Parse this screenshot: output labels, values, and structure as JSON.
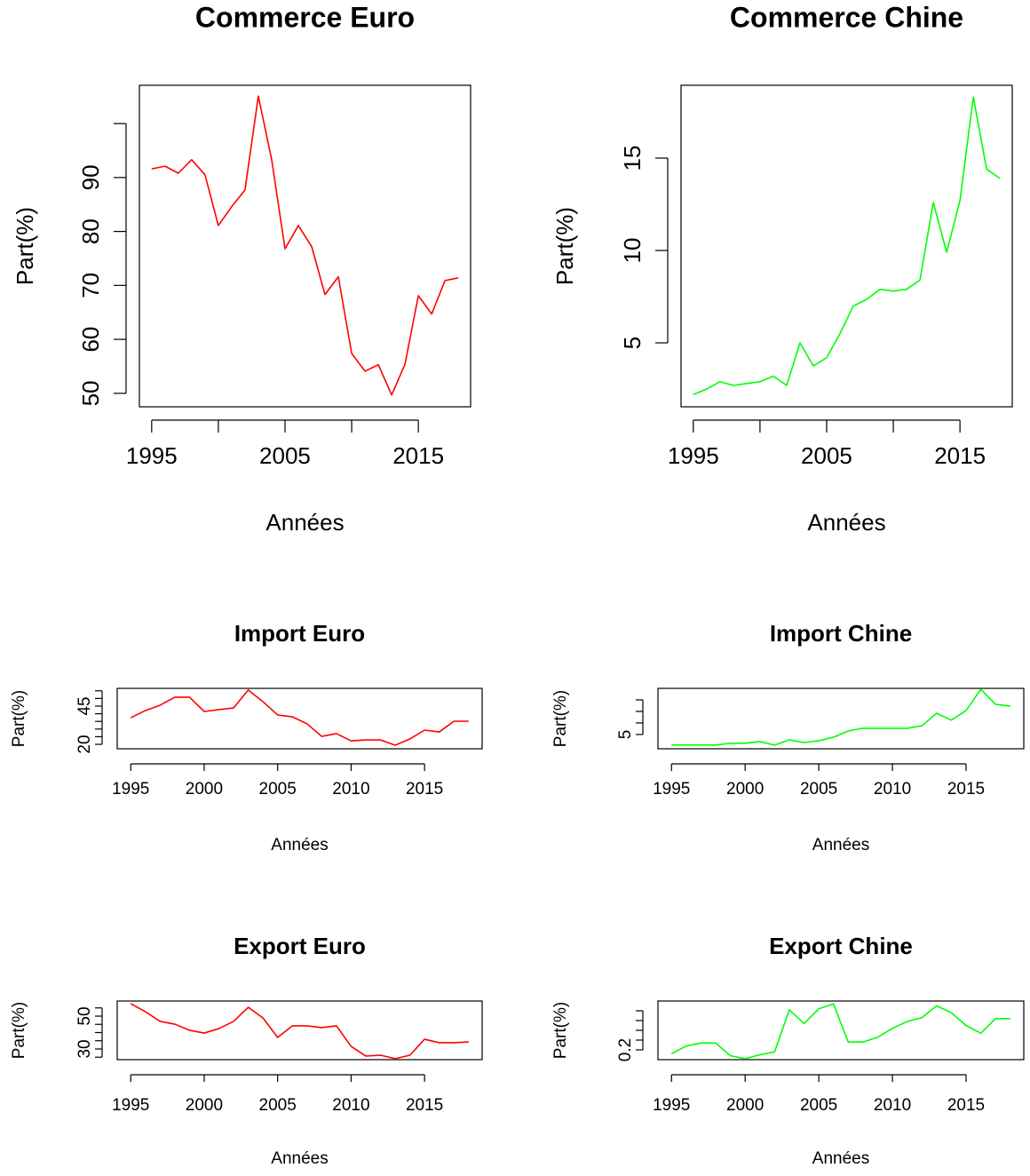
{
  "chart_data": [
    {
      "type": "line",
      "title": "Commerce Euro",
      "xlabel": "Années",
      "ylabel": "Part(%)",
      "color": "#ff0000",
      "x": [
        1995,
        1996,
        1997,
        1998,
        1999,
        2000,
        2001,
        2002,
        2003,
        2004,
        2005,
        2006,
        2007,
        2008,
        2009,
        2010,
        2011,
        2012,
        2013,
        2014,
        2015,
        2016,
        2017,
        2018
      ],
      "values": [
        91.6,
        92.1,
        90.8,
        93.3,
        90.5,
        81.1,
        84.6,
        87.7,
        105.1,
        93.3,
        76.8,
        81.1,
        77.2,
        68.3,
        71.6,
        57.4,
        54.1,
        55.3,
        49.7,
        55.4,
        68.1,
        64.7,
        70.9,
        71.4
      ],
      "xlim": [
        1994.08,
        2018.92
      ],
      "xticks": [
        1995,
        {
          "value": 2000,
          "label": null
        },
        2005,
        {
          "value": 2010,
          "label": null
        },
        2015
      ],
      "ylim": [
        47.5,
        107.1
      ],
      "yticks": [
        50,
        60,
        70,
        80,
        90,
        {
          "value": 100,
          "label": null
        }
      ]
    },
    {
      "type": "line",
      "title": "Commerce Chine",
      "xlabel": "Années",
      "ylabel": "Part(%)",
      "color": "#00ff00",
      "x": [
        1995,
        1996,
        1997,
        1998,
        1999,
        2000,
        2001,
        2002,
        2003,
        2004,
        2005,
        2006,
        2007,
        2008,
        2009,
        2010,
        2011,
        2012,
        2013,
        2014,
        2015,
        2016,
        2017,
        2018
      ],
      "values": [
        2.2,
        2.5,
        2.9,
        2.7,
        2.8,
        2.9,
        3.2,
        2.7,
        5.0,
        3.75,
        4.2,
        5.5,
        7.0,
        7.35,
        7.9,
        7.8,
        7.9,
        8.4,
        12.6,
        9.9,
        12.7,
        18.3,
        14.4,
        13.9
      ],
      "xlim": [
        1994.08,
        2018.92
      ],
      "xticks": [
        1995,
        {
          "value": 2000,
          "label": null
        },
        2005,
        {
          "value": 2010,
          "label": null
        },
        2015
      ],
      "ylim": [
        1.54,
        18.94
      ],
      "yticks": [
        5,
        10,
        15
      ]
    },
    {
      "type": "line",
      "title": "Import Euro",
      "xlabel": "Années",
      "ylabel": "Part(%)",
      "color": "#ff0000",
      "x": [
        1995,
        1996,
        1997,
        1998,
        1999,
        2000,
        2001,
        2002,
        2003,
        2004,
        2005,
        2006,
        2007,
        2008,
        2009,
        2010,
        2011,
        2012,
        2013,
        2014,
        2015,
        2016,
        2017,
        2018
      ],
      "values": [
        37.4,
        42.1,
        45.6,
        50.8,
        50.8,
        41.5,
        42.7,
        43.8,
        55.5,
        47.9,
        39.2,
        38.0,
        33.4,
        25.2,
        27.0,
        22.3,
        22.9,
        22.9,
        19.4,
        23.5,
        29.3,
        28.1,
        35.1,
        35.1
      ],
      "xlim": [
        1994.08,
        2018.92
      ],
      "xticks": [
        1995,
        2000,
        2005,
        2010,
        2015
      ],
      "ylim": [
        17.1,
        56.6
      ],
      "yticks": [
        20,
        {
          "value": 25,
          "label": null
        },
        {
          "value": 30,
          "label": null
        },
        {
          "value": 35,
          "label": null
        },
        {
          "value": 40,
          "label": null
        },
        45,
        {
          "value": 50,
          "label": null
        },
        {
          "value": 55,
          "label": null
        }
      ]
    },
    {
      "type": "line",
      "title": "Import Chine",
      "xlabel": "Années",
      "ylabel": "Part(%)",
      "color": "#00ff00",
      "x": [
        1995,
        1996,
        1997,
        1998,
        1999,
        2000,
        2001,
        2002,
        2003,
        2004,
        2005,
        2006,
        2007,
        2008,
        2009,
        2010,
        2011,
        2012,
        2013,
        2014,
        2015,
        2016,
        2017,
        2018
      ],
      "values": [
        0.4,
        0.4,
        0.4,
        0.4,
        1.2,
        1.2,
        1.9,
        0.4,
        2.7,
        1.5,
        2.3,
        3.8,
        6.5,
        7.7,
        7.7,
        7.7,
        7.7,
        8.8,
        14.2,
        11.2,
        15.4,
        24.6,
        18.1,
        17.3
      ],
      "xlim": [
        1994.08,
        2018.92
      ],
      "xticks": [
        1995,
        2000,
        2005,
        2010,
        2015
      ],
      "ylim": [
        -1.2,
        25.0
      ],
      "yticks": [
        5,
        {
          "value": 10,
          "label": null
        },
        {
          "value": 15,
          "label": null
        },
        {
          "value": 20,
          "label": null
        }
      ]
    },
    {
      "type": "line",
      "title": "Export Euro",
      "xlabel": "Années",
      "ylabel": "Part(%)",
      "color": "#ff0000",
      "x": [
        1995,
        1996,
        1997,
        1998,
        1999,
        2000,
        2001,
        2002,
        2003,
        2004,
        2005,
        2006,
        2007,
        2008,
        2009,
        2010,
        2011,
        2012,
        2013,
        2014,
        2015,
        2016,
        2017,
        2018
      ],
      "values": [
        57.6,
        52.7,
        46.8,
        45.1,
        41.4,
        39.7,
        42.4,
        46.8,
        55.4,
        48.9,
        37.0,
        44.1,
        44.1,
        43.0,
        44.1,
        31.6,
        25.7,
        26.2,
        24.1,
        26.2,
        35.9,
        33.8,
        33.8,
        34.3
      ],
      "xlim": [
        1994.08,
        2018.92
      ],
      "xticks": [
        1995,
        2000,
        2005,
        2010,
        2015
      ],
      "ylim": [
        23.5,
        59.2
      ],
      "yticks": [
        {
          "value": 25,
          "label": null
        },
        30,
        {
          "value": 35,
          "label": null
        },
        {
          "value": 40,
          "label": null
        },
        {
          "value": 45,
          "label": null
        },
        50,
        {
          "value": 55,
          "label": null
        }
      ]
    },
    {
      "type": "line",
      "title": "Export Chine",
      "xlabel": "Années",
      "ylabel": "Part(%)",
      "color": "#00ff00",
      "x": [
        1995,
        1996,
        1997,
        1998,
        1999,
        2000,
        2001,
        2002,
        2003,
        2004,
        2005,
        2006,
        2007,
        2008,
        2009,
        2010,
        2011,
        2012,
        2013,
        2014,
        2015,
        2016,
        2017,
        2018
      ],
      "values": [
        0.16,
        0.24,
        0.27,
        0.27,
        0.14,
        0.11,
        0.15,
        0.18,
        0.61,
        0.47,
        0.62,
        0.67,
        0.28,
        0.28,
        0.33,
        0.42,
        0.49,
        0.53,
        0.65,
        0.58,
        0.45,
        0.37,
        0.52,
        0.52
      ],
      "xlim": [
        1994.08,
        2018.92
      ],
      "xticks": [
        1995,
        2000,
        2005,
        2010,
        2015
      ],
      "ylim": [
        0.1,
        0.7
      ],
      "yticks": [
        0.2,
        {
          "value": 0.3,
          "label": null
        },
        {
          "value": 0.4,
          "label": null
        },
        {
          "value": 0.5,
          "label": null
        },
        {
          "value": 0.6,
          "label": null
        }
      ]
    }
  ]
}
